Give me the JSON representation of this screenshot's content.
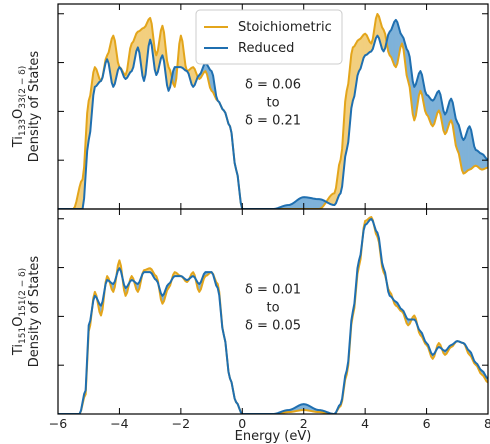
{
  "chart_data": {
    "type": "area",
    "xlabel": "Energy (eV)",
    "xlim": [
      -6,
      8
    ],
    "x_ticks": [
      -6,
      -4,
      -2,
      0,
      2,
      4,
      6,
      8
    ],
    "legend": {
      "position": "top-center",
      "entries": [
        {
          "name": "Stoichiometric",
          "color": "#e3a51b"
        },
        {
          "name": "Reduced",
          "color": "#1f6fb0"
        }
      ]
    },
    "fill_colors": {
      "stoichiometric_higher": "#f2cf7e",
      "reduced_higher": "#7fb2d9"
    },
    "panels": [
      {
        "ylabel_line1": "Ti",
        "ylabel_sub1": "133",
        "ylabel_mid": "O",
        "ylabel_sub2": "33(2 − δ)",
        "ylabel_line2": "Density of States",
        "ylim": [
          0,
          1
        ],
        "annotation": [
          "δ = 0.06",
          "to",
          "δ = 0.21"
        ],
        "series": [
          {
            "name": "Stoichiometric",
            "x": [
              -6,
              -5.5,
              -5.2,
              -5,
              -4.8,
              -4.6,
              -4.4,
              -4.2,
              -4,
              -3.8,
              -3.6,
              -3.4,
              -3.2,
              -3,
              -2.8,
              -2.6,
              -2.4,
              -2.2,
              -2,
              -1.8,
              -1.6,
              -1.4,
              -1.2,
              -1,
              -0.8,
              -0.6,
              -0.4,
              -0.2,
              0,
              0.5,
              1,
              1.5,
              2,
              2.5,
              3,
              3.2,
              3.4,
              3.6,
              3.8,
              4,
              4.2,
              4.4,
              4.6,
              4.8,
              5,
              5.2,
              5.4,
              5.6,
              5.8,
              6,
              6.2,
              6.4,
              6.6,
              6.8,
              7,
              7.2,
              7.4,
              7.6,
              7.8,
              8
            ],
            "y": [
              0,
              0,
              0.15,
              0.55,
              0.72,
              0.65,
              0.78,
              0.88,
              0.72,
              0.68,
              0.84,
              0.9,
              0.92,
              0.97,
              0.78,
              0.93,
              0.72,
              0.62,
              0.88,
              0.7,
              0.72,
              0.66,
              0.7,
              0.6,
              0.55,
              0.5,
              0.42,
              0.2,
              0,
              0,
              0,
              0,
              0,
              0,
              0.08,
              0.25,
              0.6,
              0.82,
              0.86,
              0.89,
              0.84,
              0.99,
              0.91,
              0.78,
              0.72,
              0.84,
              0.65,
              0.45,
              0.6,
              0.48,
              0.42,
              0.5,
              0.38,
              0.45,
              0.3,
              0.18,
              0.2,
              0.22,
              0.2,
              0.21
            ]
          },
          {
            "name": "Reduced",
            "x": [
              -6,
              -5.2,
              -5,
              -4.8,
              -4.6,
              -4.4,
              -4.2,
              -4,
              -3.8,
              -3.6,
              -3.4,
              -3.2,
              -3,
              -2.8,
              -2.6,
              -2.4,
              -2.2,
              -2,
              -1.8,
              -1.6,
              -1.4,
              -1.2,
              -1,
              -0.8,
              -0.6,
              -0.4,
              -0.2,
              0,
              0.5,
              1,
              1.5,
              2,
              2.5,
              3,
              3.2,
              3.4,
              3.6,
              3.8,
              4,
              4.2,
              4.4,
              4.6,
              4.8,
              5,
              5.2,
              5.4,
              5.6,
              5.8,
              6,
              6.2,
              6.4,
              6.6,
              6.8,
              7,
              7.2,
              7.4,
              7.6,
              7.8,
              8
            ],
            "y": [
              0,
              0,
              0.35,
              0.62,
              0.65,
              0.76,
              0.62,
              0.72,
              0.66,
              0.7,
              0.82,
              0.65,
              0.86,
              0.68,
              0.78,
              0.6,
              0.72,
              0.72,
              0.7,
              0.62,
              0.68,
              0.74,
              0.7,
              0.55,
              0.5,
              0.42,
              0.2,
              0,
              0,
              0,
              0.02,
              0.06,
              0.05,
              0.02,
              0.08,
              0.3,
              0.55,
              0.7,
              0.78,
              0.8,
              0.88,
              0.8,
              0.9,
              0.96,
              0.88,
              0.8,
              0.62,
              0.7,
              0.58,
              0.55,
              0.6,
              0.48,
              0.56,
              0.44,
              0.35,
              0.42,
              0.3,
              0.28,
              0.25
            ]
          }
        ]
      },
      {
        "ylabel_line1": "Ti",
        "ylabel_sub1": "151",
        "ylabel_mid": "O",
        "ylabel_sub2": "151(2 − δ)",
        "ylabel_line2": "Density of States",
        "ylim": [
          0,
          1
        ],
        "annotation": [
          "δ = 0.01",
          "to",
          "δ = 0.05"
        ],
        "series": [
          {
            "name": "Stoichiometric",
            "x": [
              -6,
              -5.3,
              -5.1,
              -5,
              -4.8,
              -4.6,
              -4.4,
              -4.2,
              -4,
              -3.8,
              -3.6,
              -3.4,
              -3.2,
              -3,
              -2.8,
              -2.6,
              -2.4,
              -2.2,
              -2,
              -1.8,
              -1.6,
              -1.4,
              -1.2,
              -1,
              -0.8,
              -0.6,
              -0.4,
              -0.2,
              0,
              0.5,
              1,
              1.5,
              2,
              2.5,
              3,
              3.2,
              3.4,
              3.6,
              3.8,
              4,
              4.2,
              4.4,
              4.6,
              4.8,
              5,
              5.2,
              5.4,
              5.6,
              5.8,
              6,
              6.2,
              6.4,
              6.6,
              6.8,
              7,
              7.2,
              7.4,
              7.6,
              7.8,
              8
            ],
            "y": [
              0,
              0,
              0.1,
              0.42,
              0.62,
              0.5,
              0.7,
              0.62,
              0.78,
              0.6,
              0.7,
              0.62,
              0.73,
              0.74,
              0.7,
              0.56,
              0.64,
              0.72,
              0.7,
              0.67,
              0.72,
              0.62,
              0.7,
              0.72,
              0.66,
              0.4,
              0.18,
              0.06,
              0,
              0,
              0,
              0.01,
              0.02,
              0.01,
              0,
              0.04,
              0.2,
              0.5,
              0.75,
              0.98,
              1.0,
              0.9,
              0.72,
              0.62,
              0.55,
              0.52,
              0.45,
              0.5,
              0.4,
              0.35,
              0.28,
              0.36,
              0.3,
              0.34,
              0.37,
              0.36,
              0.3,
              0.25,
              0.2,
              0.16
            ]
          },
          {
            "name": "Reduced",
            "x": [
              -6,
              -5.3,
              -5.1,
              -5,
              -4.8,
              -4.6,
              -4.4,
              -4.2,
              -4,
              -3.8,
              -3.6,
              -3.4,
              -3.2,
              -3,
              -2.8,
              -2.6,
              -2.4,
              -2.2,
              -2,
              -1.8,
              -1.6,
              -1.4,
              -1.2,
              -1,
              -0.8,
              -0.6,
              -0.4,
              -0.2,
              0,
              0.5,
              1,
              1.5,
              2,
              2.5,
              3,
              3.2,
              3.4,
              3.6,
              3.8,
              4,
              4.2,
              4.4,
              4.6,
              4.8,
              5,
              5.2,
              5.4,
              5.6,
              5.8,
              6,
              6.2,
              6.4,
              6.6,
              6.8,
              7,
              7.2,
              7.4,
              7.6,
              7.8,
              8
            ],
            "y": [
              0,
              0,
              0.12,
              0.45,
              0.6,
              0.55,
              0.68,
              0.66,
              0.74,
              0.64,
              0.68,
              0.66,
              0.72,
              0.72,
              0.68,
              0.6,
              0.66,
              0.7,
              0.7,
              0.68,
              0.7,
              0.66,
              0.72,
              0.72,
              0.64,
              0.4,
              0.18,
              0.06,
              0,
              0,
              0,
              0.02,
              0.05,
              0.02,
              0,
              0.05,
              0.22,
              0.52,
              0.78,
              0.96,
              0.99,
              0.92,
              0.74,
              0.6,
              0.57,
              0.53,
              0.48,
              0.48,
              0.42,
              0.36,
              0.3,
              0.34,
              0.32,
              0.35,
              0.37,
              0.36,
              0.32,
              0.26,
              0.22,
              0.18
            ]
          }
        ]
      }
    ]
  }
}
